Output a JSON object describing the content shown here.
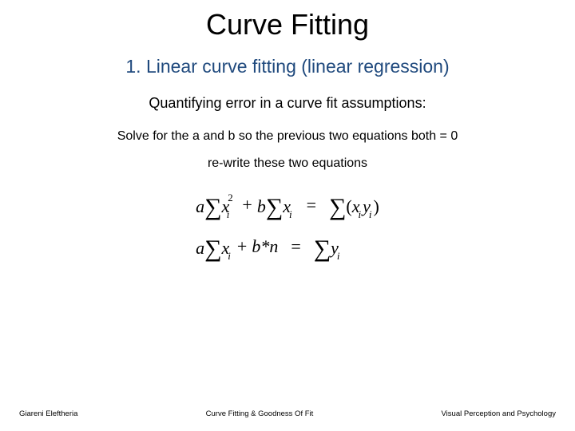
{
  "title": "Curve Fitting",
  "subtitle": "1. Linear curve fitting (linear regression)",
  "subtitle_color": "#1f497d",
  "line1": "Quantifying error in a curve fit assumptions:",
  "line2": "Solve for the a and b so the previous two equations both = 0",
  "line3": "re-write these two equations",
  "equations": {
    "eq1": {
      "t1a": "a",
      "t1var": "x",
      "t1sup": "2",
      "t1sub": "i",
      "plus": "+",
      "t2a": "b",
      "t2var": "x",
      "t2sub": "i",
      "eq": "=",
      "rhs_open": "(",
      "rhs_x": "x",
      "rhs_xsub": "i",
      "rhs_y": "y",
      "rhs_ysub": "i",
      "rhs_close": ")"
    },
    "eq2": {
      "t1a": "a",
      "t1var": "x",
      "t1sub": "i",
      "plus": "+",
      "t2": "b*n",
      "eq": "=",
      "rhs_var": "y",
      "rhs_sub": "i"
    }
  },
  "footer": {
    "left": "Giareni Eleftheria",
    "center": "Curve Fitting & Goodness Of Fit",
    "right": "Visual Perception and Psychology"
  }
}
